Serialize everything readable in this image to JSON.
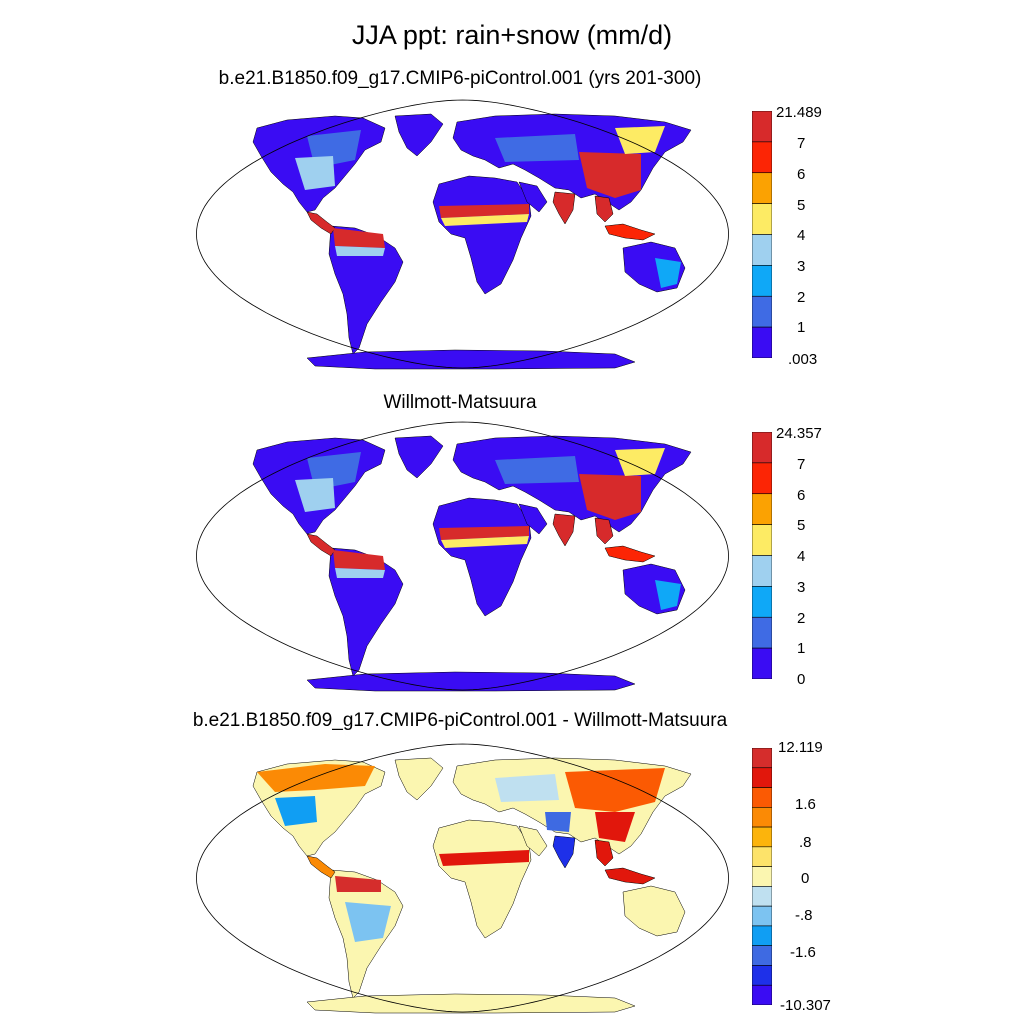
{
  "title": "JJA ppt: rain+snow (mm/d)",
  "colors": {
    "seq": [
      "#3a0cf3",
      "#3f6be4",
      "#0fa8f7",
      "#9fd0ef",
      "#fdeb64",
      "#fba202",
      "#fc2505",
      "#d72a2b"
    ],
    "div": [
      "#3a0cf3",
      "#1e30e9",
      "#3e6ae2",
      "#109ef3",
      "#7cc3f1",
      "#bfe0f0",
      "#fbf6b0",
      "#fde36a",
      "#fcb40c",
      "#fb8a05",
      "#fb5a03",
      "#e1170c",
      "#d52d2c"
    ],
    "ocean": "#ffffff",
    "outline": "#000000"
  },
  "panels": [
    {
      "title": "b.e21.B1850.f09_g17.CMIP6-piControl.001 (yrs 201-300)",
      "palette": "seq",
      "legend_labels": [
        "21.489",
        "7",
        "6",
        "5",
        "4",
        "3",
        "2",
        "1",
        ".003"
      ]
    },
    {
      "title": "Willmott-Matsuura",
      "palette": "seq",
      "legend_labels": [
        "24.357",
        "7",
        "6",
        "5",
        "4",
        "3",
        "2",
        "1",
        "0"
      ]
    },
    {
      "title": "b.e21.B1850.f09_g17.CMIP6-piControl.001 - Willmott-Matsuura",
      "palette": "div",
      "legend_labels": [
        "12.119",
        "1.6",
        ".8",
        "0",
        "-.8",
        "-1.6",
        "-10.307"
      ]
    }
  ]
}
